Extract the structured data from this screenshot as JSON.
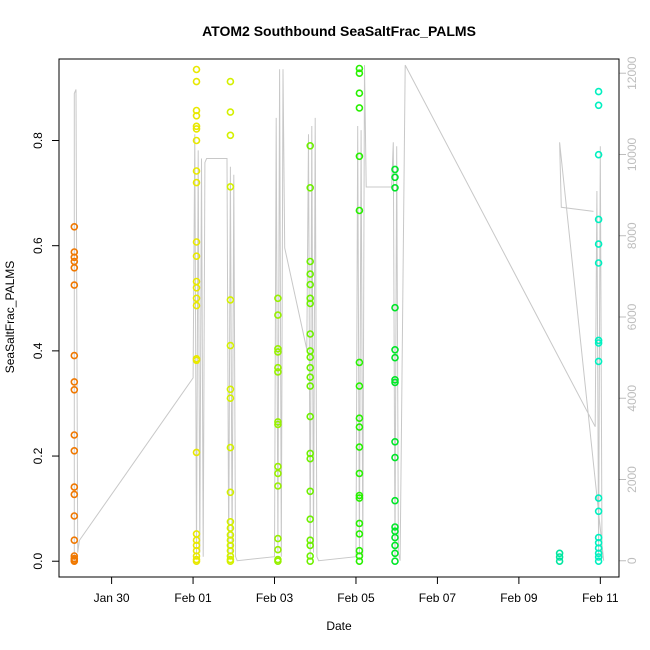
{
  "chart_data": {
    "type": "scatter",
    "title": "ATOM2 Southbound SeaSaltFrac_PALMS",
    "xlabel": "Date",
    "ylabel": "SeaSaltFrac_PALMS",
    "x_ticks": [
      "Jan 30",
      "Feb 01",
      "Feb 03",
      "Feb 05",
      "Feb 07",
      "Feb 09",
      "Feb 11"
    ],
    "y_ticks": [
      "0.0",
      "0.2",
      "0.4",
      "0.6",
      "0.8"
    ],
    "y2_ticks": [
      "0",
      "2000",
      "4000",
      "6000",
      "8000",
      "10000",
      "12000"
    ],
    "xlim": [
      "Jan 28 17:00",
      "Feb 11 11:00"
    ],
    "ylim": [
      -0.03,
      0.955
    ],
    "y2lim": [
      -400,
      12350
    ],
    "grid": false,
    "series": [
      {
        "color": "#f07800",
        "points": [
          [
            "Jan 29 02:00",
            0.636
          ],
          [
            "Jan 29 02:00",
            0.588
          ],
          [
            "Jan 29 02:00",
            0.578
          ],
          [
            "Jan 29 02:00",
            0.57
          ],
          [
            "Jan 29 02:00",
            0.558
          ],
          [
            "Jan 29 02:00",
            0.525
          ],
          [
            "Jan 29 02:00",
            0.391
          ],
          [
            "Jan 29 02:00",
            0.341
          ],
          [
            "Jan 29 02:00",
            0.326
          ],
          [
            "Jan 29 02:00",
            0.24
          ],
          [
            "Jan 29 02:00",
            0.21
          ],
          [
            "Jan 29 02:00",
            0.141
          ],
          [
            "Jan 29 02:00",
            0.127
          ],
          [
            "Jan 29 02:00",
            0.086
          ],
          [
            "Jan 29 02:00",
            0.04
          ],
          [
            "Jan 29 02:00",
            0.01
          ],
          [
            "Jan 29 02:00",
            0.005
          ],
          [
            "Jan 29 02:00",
            0.002
          ],
          [
            "Jan 29 02:00",
            0.0
          ]
        ]
      },
      {
        "color": "#e8e800",
        "points": [
          [
            "Feb 01 02:00",
            0.935
          ],
          [
            "Feb 01 02:00",
            0.912
          ],
          [
            "Feb 01 02:00",
            0.857
          ],
          [
            "Feb 01 02:00",
            0.847
          ],
          [
            "Feb 01 02:00",
            0.827
          ],
          [
            "Feb 01 02:00",
            0.822
          ],
          [
            "Feb 01 02:00",
            0.8
          ],
          [
            "Feb 01 02:00",
            0.742
          ],
          [
            "Feb 01 02:00",
            0.72
          ],
          [
            "Feb 01 02:00",
            0.607
          ],
          [
            "Feb 01 02:00",
            0.58
          ],
          [
            "Feb 01 02:00",
            0.532
          ],
          [
            "Feb 01 02:00",
            0.52
          ],
          [
            "Feb 01 02:00",
            0.5
          ],
          [
            "Feb 01 02:00",
            0.486
          ],
          [
            "Feb 01 02:00",
            0.385
          ],
          [
            "Feb 01 02:00",
            0.382
          ],
          [
            "Feb 01 02:00",
            0.207
          ],
          [
            "Feb 01 02:00",
            0.052
          ],
          [
            "Feb 01 02:00",
            0.04
          ],
          [
            "Feb 01 02:00",
            0.03
          ],
          [
            "Feb 01 02:00",
            0.02
          ],
          [
            "Feb 01 02:00",
            0.01
          ],
          [
            "Feb 01 02:00",
            0.003
          ],
          [
            "Feb 01 02:00",
            0.0
          ]
        ]
      },
      {
        "color": "#d4f000",
        "points": [
          [
            "Feb 01 22:00",
            0.912
          ],
          [
            "Feb 01 22:00",
            0.854
          ],
          [
            "Feb 01 22:00",
            0.81
          ],
          [
            "Feb 01 22:00",
            0.712
          ],
          [
            "Feb 01 22:00",
            0.497
          ],
          [
            "Feb 01 22:00",
            0.41
          ],
          [
            "Feb 01 22:00",
            0.327
          ],
          [
            "Feb 01 22:00",
            0.31
          ],
          [
            "Feb 01 22:00",
            0.216
          ],
          [
            "Feb 01 22:00",
            0.131
          ],
          [
            "Feb 01 22:00",
            0.075
          ],
          [
            "Feb 01 22:00",
            0.063
          ],
          [
            "Feb 01 22:00",
            0.05
          ],
          [
            "Feb 01 22:00",
            0.04
          ],
          [
            "Feb 01 22:00",
            0.03
          ],
          [
            "Feb 01 22:00",
            0.02
          ],
          [
            "Feb 01 22:00",
            0.01
          ],
          [
            "Feb 01 22:00",
            0.003
          ],
          [
            "Feb 01 22:00",
            0.0
          ]
        ]
      },
      {
        "color": "#96f000",
        "points": [
          [
            "Feb 03 02:00",
            0.5
          ],
          [
            "Feb 03 02:00",
            0.468
          ],
          [
            "Feb 03 02:00",
            0.404
          ],
          [
            "Feb 03 02:00",
            0.398
          ],
          [
            "Feb 03 02:00",
            0.368
          ],
          [
            "Feb 03 02:00",
            0.36
          ],
          [
            "Feb 03 02:00",
            0.265
          ],
          [
            "Feb 03 02:00",
            0.26
          ],
          [
            "Feb 03 02:00",
            0.18
          ],
          [
            "Feb 03 02:00",
            0.167
          ],
          [
            "Feb 03 02:00",
            0.143
          ],
          [
            "Feb 03 02:00",
            0.043
          ],
          [
            "Feb 03 02:00",
            0.022
          ],
          [
            "Feb 03 02:00",
            0.003
          ],
          [
            "Feb 03 02:00",
            0.0
          ]
        ]
      },
      {
        "color": "#6ef000",
        "points": [
          [
            "Feb 03 21:00",
            0.79
          ],
          [
            "Feb 03 21:00",
            0.71
          ],
          [
            "Feb 03 21:00",
            0.57
          ],
          [
            "Feb 03 21:00",
            0.546
          ],
          [
            "Feb 03 21:00",
            0.526
          ],
          [
            "Feb 03 21:00",
            0.5
          ],
          [
            "Feb 03 21:00",
            0.49
          ],
          [
            "Feb 03 21:00",
            0.432
          ],
          [
            "Feb 03 21:00",
            0.4
          ],
          [
            "Feb 03 21:00",
            0.388
          ],
          [
            "Feb 03 21:00",
            0.368
          ],
          [
            "Feb 03 21:00",
            0.35
          ],
          [
            "Feb 03 21:00",
            0.333
          ],
          [
            "Feb 03 21:00",
            0.275
          ],
          [
            "Feb 03 21:00",
            0.205
          ],
          [
            "Feb 03 21:00",
            0.195
          ],
          [
            "Feb 03 21:00",
            0.133
          ],
          [
            "Feb 03 21:00",
            0.08
          ],
          [
            "Feb 03 21:00",
            0.04
          ],
          [
            "Feb 03 21:00",
            0.03
          ],
          [
            "Feb 03 21:00",
            0.01
          ],
          [
            "Feb 03 21:00",
            0.0
          ]
        ]
      },
      {
        "color": "#28f000",
        "points": [
          [
            "Feb 05 02:00",
            0.937
          ],
          [
            "Feb 05 02:00",
            0.928
          ],
          [
            "Feb 05 02:00",
            0.89
          ],
          [
            "Feb 05 02:00",
            0.862
          ],
          [
            "Feb 05 02:00",
            0.77
          ],
          [
            "Feb 05 02:00",
            0.667
          ],
          [
            "Feb 05 02:00",
            0.378
          ],
          [
            "Feb 05 02:00",
            0.333
          ],
          [
            "Feb 05 02:00",
            0.272
          ],
          [
            "Feb 05 02:00",
            0.255
          ],
          [
            "Feb 05 02:00",
            0.217
          ],
          [
            "Feb 05 02:00",
            0.167
          ],
          [
            "Feb 05 02:00",
            0.125
          ],
          [
            "Feb 05 02:00",
            0.12
          ],
          [
            "Feb 05 02:00",
            0.072
          ],
          [
            "Feb 05 02:00",
            0.052
          ],
          [
            "Feb 05 02:00",
            0.02
          ],
          [
            "Feb 05 02:00",
            0.01
          ],
          [
            "Feb 05 02:00",
            0.0
          ]
        ]
      },
      {
        "color": "#00e628",
        "points": [
          [
            "Feb 05 23:00",
            0.745
          ],
          [
            "Feb 05 23:00",
            0.73
          ],
          [
            "Feb 05 23:00",
            0.71
          ],
          [
            "Feb 05 23:00",
            0.482
          ],
          [
            "Feb 05 23:00",
            0.402
          ],
          [
            "Feb 05 23:00",
            0.387
          ],
          [
            "Feb 05 23:00",
            0.345
          ],
          [
            "Feb 05 23:00",
            0.34
          ],
          [
            "Feb 05 23:00",
            0.227
          ],
          [
            "Feb 05 23:00",
            0.197
          ],
          [
            "Feb 05 23:00",
            0.115
          ],
          [
            "Feb 05 23:00",
            0.065
          ],
          [
            "Feb 05 23:00",
            0.057
          ],
          [
            "Feb 05 23:00",
            0.045
          ],
          [
            "Feb 05 23:00",
            0.03
          ],
          [
            "Feb 05 23:00",
            0.015
          ],
          [
            "Feb 05 23:00",
            0.0
          ]
        ]
      },
      {
        "color": "#00e6a0",
        "points": [
          [
            "Feb 10 00:00",
            0.015
          ],
          [
            "Feb 10 00:00",
            0.008
          ],
          [
            "Feb 10 00:00",
            0.0
          ]
        ]
      },
      {
        "color": "#00f0c0",
        "points": [
          [
            "Feb 10 23:00",
            0.893
          ],
          [
            "Feb 10 23:00",
            0.867
          ],
          [
            "Feb 10 23:00",
            0.773
          ],
          [
            "Feb 10 23:00",
            0.65
          ],
          [
            "Feb 10 23:00",
            0.603
          ],
          [
            "Feb 10 23:00",
            0.567
          ],
          [
            "Feb 10 23:00",
            0.42
          ],
          [
            "Feb 10 23:00",
            0.415
          ],
          [
            "Feb 10 23:00",
            0.38
          ],
          [
            "Feb 10 23:00",
            0.12
          ],
          [
            "Feb 10 23:00",
            0.095
          ],
          [
            "Feb 10 23:00",
            0.045
          ],
          [
            "Feb 10 23:00",
            0.035
          ],
          [
            "Feb 10 23:00",
            0.025
          ],
          [
            "Feb 10 23:00",
            0.015
          ],
          [
            "Feb 10 23:00",
            0.008
          ],
          [
            "Feb 10 23:00",
            0.0
          ]
        ]
      }
    ],
    "secondary_line": {
      "axis": "right",
      "color": "#c8c8c8",
      "points": [
        [
          "Jan 29 02:00",
          0
        ],
        [
          "Jan 29 02:00",
          11500
        ],
        [
          "Jan 29 03:00",
          11600
        ],
        [
          "Jan 29 04:00",
          200
        ],
        [
          "Jan 29 05:00",
          500
        ],
        [
          "Feb 01 00:00",
          4500
        ],
        [
          "Feb 01 01:00",
          10500
        ],
        [
          "Feb 01 02:00",
          100
        ],
        [
          "Feb 01 03:00",
          10100
        ],
        [
          "Feb 01 04:00",
          200
        ],
        [
          "Feb 01 05:00",
          9900
        ],
        [
          "Feb 01 06:00",
          100
        ],
        [
          "Feb 01 07:00",
          9800
        ],
        [
          "Feb 01 08:00",
          9900
        ],
        [
          "Feb 01 20:00",
          9900
        ],
        [
          "Feb 01 21:00",
          100
        ],
        [
          "Feb 01 22:00",
          9700
        ],
        [
          "Feb 01 23:00",
          200
        ],
        [
          "Feb 02 00:00",
          9500
        ],
        [
          "Feb 02 01:00",
          100
        ],
        [
          "Feb 02 02:00",
          0
        ],
        [
          "Feb 03 00:00",
          100
        ],
        [
          "Feb 03 01:00",
          10900
        ],
        [
          "Feb 03 02:00",
          200
        ],
        [
          "Feb 03 03:00",
          12100
        ],
        [
          "Feb 03 04:00",
          100
        ],
        [
          "Feb 03 05:00",
          12100
        ],
        [
          "Feb 03 06:00",
          7700
        ],
        [
          "Feb 03 19:00",
          5200
        ],
        [
          "Feb 03 20:00",
          10500
        ],
        [
          "Feb 03 21:00",
          100
        ],
        [
          "Feb 03 22:00",
          10700
        ],
        [
          "Feb 03 23:00",
          200
        ],
        [
          "Feb 04 00:00",
          10900
        ],
        [
          "Feb 04 01:00",
          100
        ],
        [
          "Feb 04 02:00",
          0
        ],
        [
          "Feb 05 00:00",
          100
        ],
        [
          "Feb 05 01:00",
          10700
        ],
        [
          "Feb 05 02:00",
          200
        ],
        [
          "Feb 05 03:00",
          10600
        ],
        [
          "Feb 05 04:00",
          100
        ],
        [
          "Feb 05 05:00",
          12200
        ],
        [
          "Feb 05 06:00",
          9200
        ],
        [
          "Feb 05 21:00",
          9200
        ],
        [
          "Feb 05 22:00",
          10300
        ],
        [
          "Feb 05 23:00",
          100
        ],
        [
          "Feb 06 00:00",
          10200
        ],
        [
          "Feb 06 01:00",
          200
        ],
        [
          "Feb 06 02:00",
          0
        ],
        [
          "Feb 06 05:00",
          12200
        ],
        [
          "Feb 10 21:00",
          3300
        ],
        [
          "Feb 10 22:00",
          9100
        ],
        [
          "Feb 10 23:00",
          100
        ],
        [
          "Feb 11 00:00",
          10200
        ],
        [
          "Feb 11 01:00",
          200
        ],
        [
          "Feb 11 02:00",
          0
        ],
        [
          "Feb 10 00:00",
          10300
        ],
        [
          "Feb 10 01:00",
          8700
        ],
        [
          "Feb 10 20:00",
          8600
        ]
      ]
    }
  }
}
